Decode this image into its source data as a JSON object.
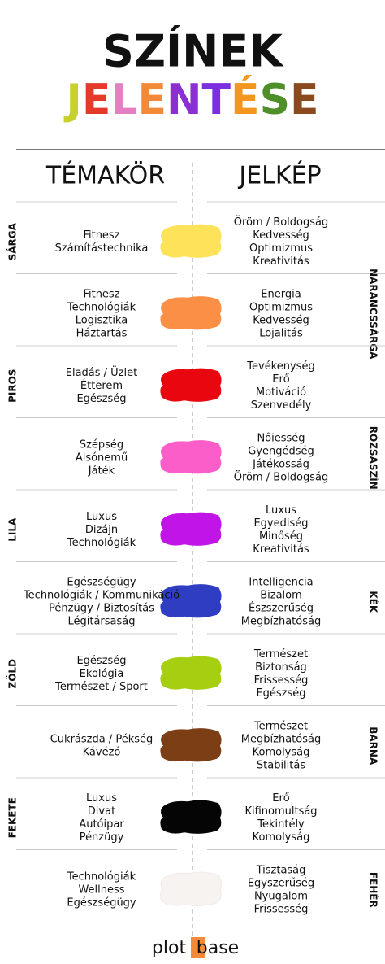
{
  "title": "SZÍNEK",
  "subtitle": "JELENTÉSE",
  "subtitle_colors": [
    "#c8d12c",
    "#e5392a",
    "#e57fc2",
    "#f28a3a",
    "#8c2fd2",
    "#7a2fe0",
    "#f2961e",
    "#4e8f2a",
    "#8a4a1e"
  ],
  "headers": [
    "TÉMAKÖR",
    "JELKÉP"
  ],
  "rows": [
    {
      "color_name": "SÁRGA",
      "color": "#fde25a",
      "topics": [
        "Fitnesz",
        "Számítástechnika"
      ],
      "meanings": [
        "Öröm / Boldogság",
        "Kedvesség",
        "Optimizmus",
        "Kreativitás"
      ]
    },
    {
      "color_name": "NARANCSSÁRGA",
      "color": "#fb8f45",
      "topics": [
        "Fitnesz",
        "Technológiák",
        "Logisztika",
        "Háztartás"
      ],
      "meanings": [
        "Energia",
        "Optimizmus",
        "Kedvesség",
        "Lojalitás"
      ]
    },
    {
      "color_name": "PIROS",
      "color": "#e8070f",
      "topics": [
        "Eladás / Üzlet",
        "Étterem",
        "Egészség"
      ],
      "meanings": [
        "Tevékenység",
        "Erő",
        "Motiváció",
        "Szenvedély"
      ]
    },
    {
      "color_name": "RÓZSASZÍN",
      "color": "#fb5ec8",
      "topics": [
        "Szépség",
        "Alsónemű",
        "Játék"
      ],
      "meanings": [
        "Nőiesség",
        "Gyengédség",
        "Játékosság",
        "Öröm / Boldogság"
      ]
    },
    {
      "color_name": "LILA",
      "color": "#c115e8",
      "topics": [
        "Luxus",
        "Dizájn",
        "Technológiák"
      ],
      "meanings": [
        "Luxus",
        "Egyediség",
        "Minőség",
        "Kreativitás"
      ]
    },
    {
      "color_name": "KÉK",
      "color": "#2f3dc2",
      "topics": [
        "Egészségügy",
        "Technológiák / Kommunikáció",
        "Pénzügy / Biztosítás",
        "Légitársaság"
      ],
      "meanings": [
        "Intelligencia",
        "Bizalom",
        "Észszerűség",
        "Megbízhatóság"
      ]
    },
    {
      "color_name": "ZÖLD",
      "color": "#a6cf12",
      "topics": [
        "Egészség",
        "Ekológia",
        "Természet / Sport"
      ],
      "meanings": [
        "Természet",
        "Biztonság",
        "Frissesség",
        "Egészség"
      ]
    },
    {
      "color_name": "BARNA",
      "color": "#7c3f15",
      "topics": [
        "Cukrászda / Pékség",
        "Kávézó"
      ],
      "meanings": [
        "Természet",
        "Megbízhatóság",
        "Komolyság",
        "Stabilitás"
      ]
    },
    {
      "color_name": "FEKETE",
      "color": "#050505",
      "topics": [
        "Luxus",
        "Divat",
        "Autóipar",
        "Pénzügy"
      ],
      "meanings": [
        "Erő",
        "Kifinomultság",
        "Tekintély",
        "Komolyság"
      ]
    },
    {
      "color_name": "FEHÉR",
      "color": "#f7f3f1",
      "topics": [
        "Technológiák",
        "Wellness",
        "Egészségügy"
      ],
      "meanings": [
        "Tisztaság",
        "Egyszerűség",
        "Nyugalom",
        "Frissesség"
      ]
    }
  ],
  "logo": [
    "plot",
    "base"
  ]
}
